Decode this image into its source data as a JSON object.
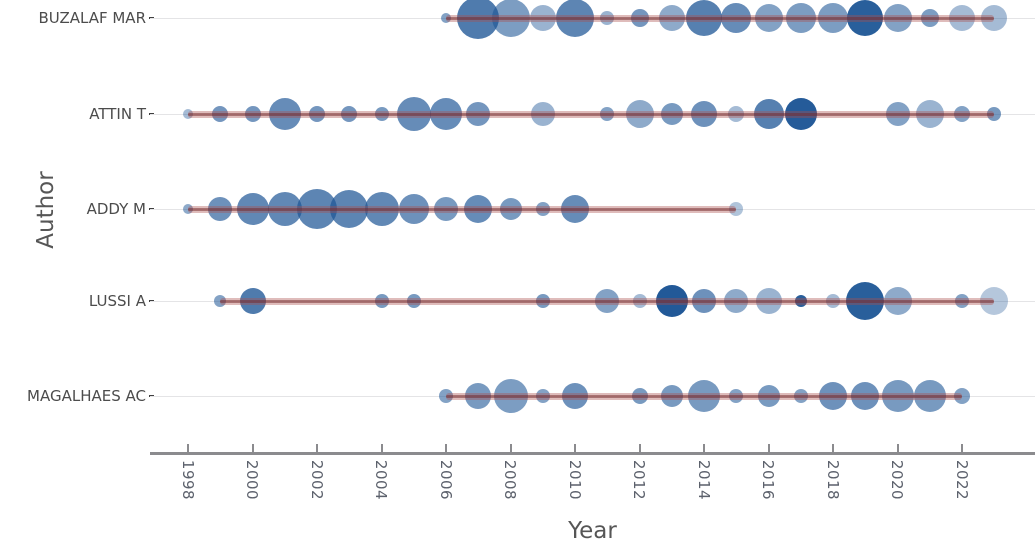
{
  "chart_data": {
    "type": "scatter",
    "subtype": "bubble-timeline",
    "title": "",
    "xlabel": "Year",
    "ylabel": "Author",
    "x_range": [
      1996.8,
      2024.2
    ],
    "x_ticks": [
      1998,
      2000,
      2002,
      2004,
      2006,
      2008,
      2010,
      2012,
      2014,
      2016,
      2018,
      2020,
      2022
    ],
    "grid": "horizontal-only",
    "legend": "none",
    "colors": {
      "bubble_base_rgb": [
        30,
        86,
        150
      ],
      "trend_line": "#aa504b",
      "grid_line": "#e4e4e6",
      "axis_line": "#8b8b8e",
      "tick_text": "#5c616c",
      "category_text": "#4c4c4c",
      "title_text": "#565656"
    },
    "point_format": "[year, radius_px, opacity] — radius encodes article count, opacity encodes citation intensity",
    "series": [
      {
        "name": "BUZALAF MAR",
        "trend_span": [
          2006,
          2023
        ],
        "points": [
          [
            2006,
            5,
            0.55
          ],
          [
            2007,
            21,
            0.78
          ],
          [
            2008,
            19,
            0.58
          ],
          [
            2009,
            13,
            0.45
          ],
          [
            2010,
            19,
            0.72
          ],
          [
            2011,
            7,
            0.45
          ],
          [
            2012,
            9,
            0.62
          ],
          [
            2013,
            13,
            0.5
          ],
          [
            2014,
            18,
            0.75
          ],
          [
            2015,
            15,
            0.68
          ],
          [
            2016,
            14,
            0.55
          ],
          [
            2017,
            15,
            0.58
          ],
          [
            2018,
            15,
            0.58
          ],
          [
            2019,
            18,
            0.95
          ],
          [
            2020,
            14,
            0.55
          ],
          [
            2021,
            9,
            0.58
          ],
          [
            2022,
            13,
            0.4
          ],
          [
            2023,
            13,
            0.4
          ]
        ]
      },
      {
        "name": "ATTIN T",
        "trend_span": [
          1998,
          2023
        ],
        "points": [
          [
            1998,
            5,
            0.4
          ],
          [
            1999,
            8,
            0.62
          ],
          [
            2000,
            8,
            0.62
          ],
          [
            2001,
            16,
            0.68
          ],
          [
            2002,
            8,
            0.62
          ],
          [
            2003,
            8,
            0.62
          ],
          [
            2004,
            7,
            0.6
          ],
          [
            2005,
            17,
            0.68
          ],
          [
            2006,
            16,
            0.68
          ],
          [
            2007,
            12,
            0.62
          ],
          [
            2009,
            12,
            0.45
          ],
          [
            2011,
            7,
            0.55
          ],
          [
            2012,
            14,
            0.5
          ],
          [
            2013,
            11,
            0.6
          ],
          [
            2014,
            13,
            0.65
          ],
          [
            2015,
            8,
            0.4
          ],
          [
            2016,
            15,
            0.75
          ],
          [
            2017,
            16,
            0.97
          ],
          [
            2020,
            12,
            0.55
          ],
          [
            2021,
            14,
            0.45
          ],
          [
            2022,
            8,
            0.55
          ],
          [
            2023,
            7,
            0.6
          ]
        ]
      },
      {
        "name": "ADDY M",
        "trend_span": [
          1998,
          2015
        ],
        "points": [
          [
            1998,
            5,
            0.5
          ],
          [
            1999,
            12,
            0.65
          ],
          [
            2000,
            16,
            0.7
          ],
          [
            2001,
            17,
            0.7
          ],
          [
            2002,
            20,
            0.72
          ],
          [
            2003,
            19,
            0.72
          ],
          [
            2004,
            17,
            0.7
          ],
          [
            2005,
            15,
            0.65
          ],
          [
            2006,
            12,
            0.6
          ],
          [
            2007,
            14,
            0.68
          ],
          [
            2008,
            11,
            0.6
          ],
          [
            2009,
            7,
            0.55
          ],
          [
            2010,
            14,
            0.68
          ],
          [
            2015,
            7,
            0.35
          ]
        ]
      },
      {
        "name": "LUSSI A",
        "trend_span": [
          1999,
          2023
        ],
        "points": [
          [
            1999,
            6,
            0.55
          ],
          [
            2000,
            13,
            0.78
          ],
          [
            2004,
            7,
            0.6
          ],
          [
            2005,
            7,
            0.6
          ],
          [
            2009,
            7,
            0.6
          ],
          [
            2011,
            12,
            0.55
          ],
          [
            2012,
            7,
            0.4
          ],
          [
            2013,
            16,
            0.98
          ],
          [
            2014,
            12,
            0.65
          ],
          [
            2015,
            12,
            0.5
          ],
          [
            2016,
            13,
            0.45
          ],
          [
            2017,
            6,
            0.95
          ],
          [
            2018,
            7,
            0.4
          ],
          [
            2019,
            19,
            0.95
          ],
          [
            2020,
            14,
            0.5
          ],
          [
            2022,
            7,
            0.55
          ],
          [
            2023,
            14,
            0.33
          ]
        ]
      },
      {
        "name": "MAGALHAES AC",
        "trend_span": [
          2006,
          2022
        ],
        "points": [
          [
            2006,
            7,
            0.55
          ],
          [
            2007,
            13,
            0.6
          ],
          [
            2008,
            17,
            0.58
          ],
          [
            2009,
            7,
            0.55
          ],
          [
            2010,
            13,
            0.65
          ],
          [
            2012,
            8,
            0.6
          ],
          [
            2013,
            11,
            0.6
          ],
          [
            2014,
            16,
            0.6
          ],
          [
            2015,
            7,
            0.55
          ],
          [
            2016,
            11,
            0.6
          ],
          [
            2017,
            7,
            0.55
          ],
          [
            2018,
            14,
            0.65
          ],
          [
            2019,
            14,
            0.65
          ],
          [
            2020,
            16,
            0.6
          ],
          [
            2021,
            16,
            0.6
          ],
          [
            2022,
            8,
            0.55
          ]
        ]
      }
    ]
  }
}
